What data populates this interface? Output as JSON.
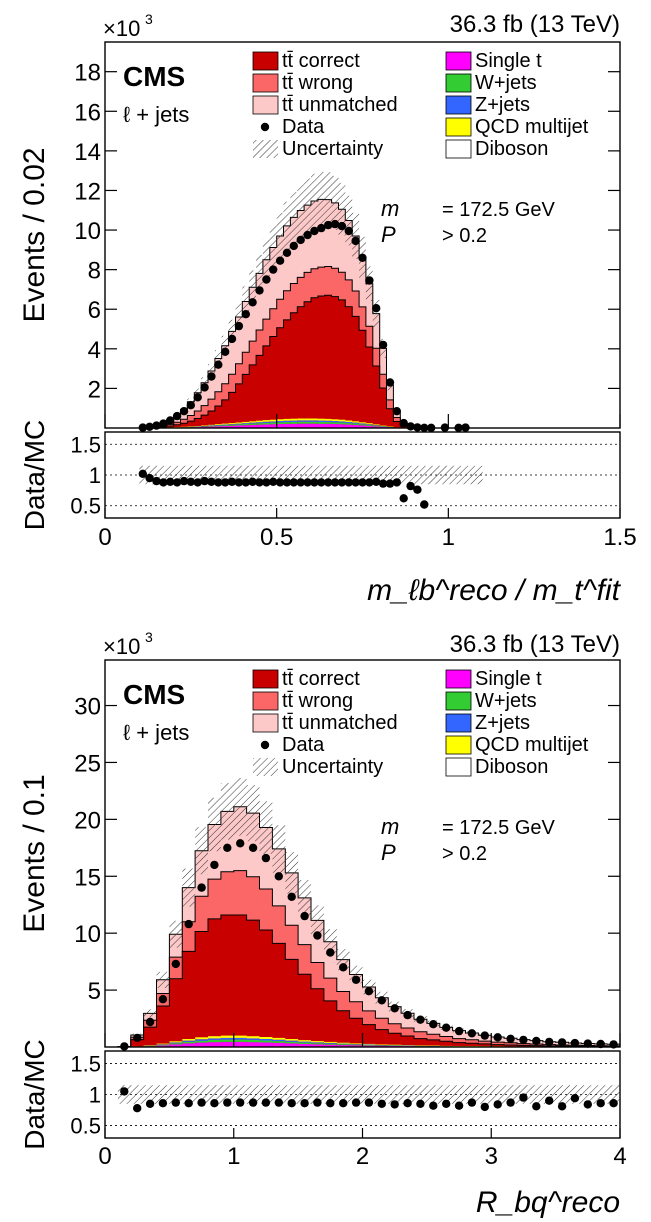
{
  "legend_items": [
    {
      "key": "tt_correct",
      "label": "tt̄ correct",
      "color": "#c80000"
    },
    {
      "key": "tt_wrong",
      "label": "tt̄ wrong",
      "color": "#fb6767"
    },
    {
      "key": "tt_unmatched",
      "label": "tt̄ unmatched",
      "color": "#fcc8c8"
    },
    {
      "key": "data",
      "label": "Data"
    },
    {
      "key": "uncertainty",
      "label": "Uncertainty"
    },
    {
      "key": "single_t",
      "label": "Single t",
      "color": "#ff00ff"
    },
    {
      "key": "w_jets",
      "label": "W+jets",
      "color": "#33cc33"
    },
    {
      "key": "z_jets",
      "label": "Z+jets",
      "color": "#3366ff"
    },
    {
      "key": "qcd",
      "label": "QCD multijet",
      "color": "#ffff00"
    },
    {
      "key": "diboson",
      "label": "Diboson",
      "color": "#ffffff"
    }
  ],
  "chart_data": [
    {
      "type": "bar",
      "lumi": "36.3 fb-1 (13 TeV)",
      "experiment": "CMS",
      "channel": "ℓ + jets",
      "annotation": {
        "m_gen": "172.5 GeV",
        "p_gof": "> 0.2"
      },
      "ylabel": "Events / 0.02",
      "ymultiplier": "×10^3",
      "ratio_label": "Data/MC",
      "xlabel": "m_ℓb^reco / m_t^fit",
      "xlim": [
        0,
        1.5
      ],
      "ylim": [
        0,
        19.5
      ],
      "xticks": [
        "0",
        "0.5",
        "1",
        "1.5"
      ],
      "yticks": [
        "2",
        "4",
        "6",
        "8",
        "10",
        "12",
        "14",
        "16",
        "18"
      ],
      "ratio_yticks": [
        "0.5",
        "1",
        "1.5"
      ],
      "ratio_ylim": [
        0.3,
        1.7
      ],
      "bin_edges_start": 0.1,
      "bin_width": 0.02,
      "series": [
        {
          "name": "tt correct",
          "values": [
            0,
            0.01,
            0.02,
            0.04,
            0.07,
            0.12,
            0.18,
            0.27,
            0.38,
            0.52,
            0.7,
            0.92,
            1.2,
            1.55,
            1.95,
            2.4,
            2.85,
            3.3,
            3.75,
            4.2,
            4.62,
            5.0,
            5.35,
            5.65,
            5.9,
            6.1,
            6.2,
            6.25,
            6.2,
            6.05,
            5.75,
            5.3,
            4.65,
            3.85,
            2.95,
            1.9,
            0.9,
            0.3,
            0.08,
            0.02,
            0.01,
            0.01,
            0,
            0,
            0,
            0,
            0,
            0,
            0,
            0
          ]
        },
        {
          "name": "tt wrong",
          "values": [
            0,
            0.02,
            0.03,
            0.05,
            0.08,
            0.13,
            0.2,
            0.28,
            0.38,
            0.48,
            0.6,
            0.72,
            0.82,
            0.92,
            1.02,
            1.12,
            1.2,
            1.28,
            1.35,
            1.4,
            1.44,
            1.47,
            1.48,
            1.48,
            1.48,
            1.47,
            1.46,
            1.45,
            1.43,
            1.4,
            1.35,
            1.28,
            1.18,
            1.05,
            0.9,
            0.7,
            0.45,
            0.2,
            0.06,
            0.02,
            0.01,
            0.01,
            0,
            0,
            0,
            0,
            0,
            0,
            0,
            0
          ]
        },
        {
          "name": "tt unmatched",
          "values": [
            0.01,
            0.04,
            0.08,
            0.14,
            0.22,
            0.35,
            0.5,
            0.7,
            0.92,
            1.16,
            1.42,
            1.68,
            1.92,
            2.16,
            2.36,
            2.56,
            2.72,
            2.86,
            3.0,
            3.1,
            3.2,
            3.28,
            3.34,
            3.38,
            3.4,
            3.42,
            3.42,
            3.38,
            3.3,
            3.18,
            3.0,
            2.78,
            2.5,
            2.15,
            1.75,
            1.3,
            0.75,
            0.3,
            0.1,
            0.04,
            0.02,
            0.01,
            0.01,
            0,
            0,
            0,
            0,
            0,
            0,
            0
          ]
        },
        {
          "name": "Others",
          "values": [
            0,
            0.01,
            0.01,
            0.02,
            0.03,
            0.04,
            0.06,
            0.08,
            0.1,
            0.13,
            0.16,
            0.19,
            0.22,
            0.25,
            0.28,
            0.31,
            0.34,
            0.37,
            0.4,
            0.42,
            0.44,
            0.46,
            0.47,
            0.48,
            0.48,
            0.48,
            0.47,
            0.46,
            0.44,
            0.42,
            0.38,
            0.34,
            0.29,
            0.24,
            0.18,
            0.12,
            0.07,
            0.03,
            0.01,
            0,
            0,
            0,
            0,
            0,
            0,
            0,
            0,
            0,
            0,
            0
          ]
        },
        {
          "name": "Data",
          "values": [
            0.02,
            0.06,
            0.12,
            0.22,
            0.38,
            0.6,
            0.85,
            1.15,
            1.55,
            2.05,
            2.6,
            3.2,
            3.85,
            4.5,
            5.15,
            5.75,
            6.35,
            6.95,
            7.5,
            8.0,
            8.45,
            8.85,
            9.2,
            9.5,
            9.75,
            9.95,
            10.1,
            10.25,
            10.3,
            10.2,
            9.95,
            9.45,
            8.6,
            7.45,
            6.05,
            4.2,
            2.3,
            0.85,
            0.25,
            0.08,
            0.03,
            0.01,
            0.01,
            0,
            0.02,
            0,
            0.01,
            0.02,
            0,
            0
          ]
        }
      ],
      "ratio": [
        1.02,
        0.95,
        0.9,
        0.88,
        0.89,
        0.88,
        0.9,
        0.89,
        0.88,
        0.9,
        0.89,
        0.88,
        0.88,
        0.89,
        0.88,
        0.88,
        0.89,
        0.88,
        0.88,
        0.89,
        0.88,
        0.88,
        0.88,
        0.88,
        0.88,
        0.88,
        0.88,
        0.88,
        0.88,
        0.88,
        0.88,
        0.88,
        0.88,
        0.88,
        0.89,
        0.86,
        0.86,
        0.88,
        0.62,
        0.82,
        0.76,
        0.52
      ]
    },
    {
      "type": "bar",
      "lumi": "36.3 fb-1 (13 TeV)",
      "experiment": "CMS",
      "channel": "ℓ + jets",
      "annotation": {
        "m_gen": "172.5 GeV",
        "p_gof": "> 0.2"
      },
      "ylabel": "Events / 0.1",
      "ymultiplier": "×10^3",
      "ratio_label": "Data/MC",
      "xlabel": "R_bq^reco",
      "xlim": [
        0,
        4
      ],
      "ylim": [
        0,
        34
      ],
      "xticks": [
        "0",
        "1",
        "2",
        "3",
        "4"
      ],
      "yticks": [
        "5",
        "10",
        "15",
        "20",
        "25",
        "30"
      ],
      "ratio_yticks": [
        "0.5",
        "1",
        "1.5"
      ],
      "ratio_ylim": [
        0.3,
        1.7
      ],
      "bin_edges_start": 0.1,
      "bin_width": 0.1,
      "series": [
        {
          "name": "tt correct",
          "values": [
            0.02,
            0.6,
            1.6,
            3.3,
            5.5,
            7.7,
            9.3,
            10.3,
            10.6,
            10.6,
            10.2,
            9.4,
            8.3,
            7.0,
            5.8,
            4.6,
            3.6,
            2.8,
            2.2,
            1.7,
            1.3,
            1.0,
            0.8,
            0.6,
            0.5,
            0.4,
            0.3,
            0.25,
            0.2,
            0.15,
            0.13,
            0.1,
            0.08,
            0.06,
            0.05,
            0.04,
            0.03,
            0.02,
            0.02
          ]
        },
        {
          "name": "tt wrong",
          "values": [
            0.01,
            0.2,
            0.6,
            1.1,
            1.9,
            2.6,
            3.1,
            3.5,
            3.8,
            3.9,
            3.8,
            3.6,
            3.3,
            3.0,
            2.6,
            2.3,
            2.0,
            1.7,
            1.45,
            1.2,
            1.0,
            0.85,
            0.7,
            0.6,
            0.5,
            0.42,
            0.35,
            0.3,
            0.25,
            0.22,
            0.19,
            0.16,
            0.14,
            0.12,
            0.1,
            0.09,
            0.08,
            0.07,
            0.06
          ]
        },
        {
          "name": "tt unmatched",
          "values": [
            0.01,
            0.2,
            0.6,
            1.2,
            2.0,
            3.0,
            4.0,
            4.8,
            5.3,
            5.6,
            5.6,
            5.4,
            5.0,
            4.6,
            4.1,
            3.7,
            3.2,
            2.8,
            2.4,
            2.1,
            1.8,
            1.5,
            1.3,
            1.1,
            0.95,
            0.8,
            0.7,
            0.6,
            0.52,
            0.45,
            0.4,
            0.35,
            0.3,
            0.26,
            0.23,
            0.2,
            0.18,
            0.16,
            0.14
          ]
        },
        {
          "name": "Others",
          "values": [
            0,
            0.05,
            0.15,
            0.3,
            0.5,
            0.7,
            0.85,
            0.95,
            1.0,
            1.0,
            0.95,
            0.88,
            0.8,
            0.7,
            0.6,
            0.52,
            0.45,
            0.38,
            0.32,
            0.27,
            0.23,
            0.2,
            0.17,
            0.14,
            0.12,
            0.1,
            0.09,
            0.08,
            0.07,
            0.06,
            0.05,
            0.04,
            0.04,
            0.03,
            0.03,
            0.02,
            0.02,
            0.02,
            0.02
          ]
        },
        {
          "name": "Data",
          "values": [
            0.05,
            0.8,
            2.2,
            4.2,
            7.3,
            10.8,
            14.0,
            16.0,
            17.5,
            17.9,
            17.5,
            16.6,
            15.0,
            13.2,
            11.5,
            9.8,
            8.3,
            7.0,
            5.9,
            4.9,
            4.1,
            3.4,
            2.8,
            2.4,
            2.0,
            1.7,
            1.4,
            1.2,
            1.0,
            0.85,
            0.72,
            0.62,
            0.53,
            0.45,
            0.4,
            0.34,
            0.3,
            0.26,
            0.23
          ]
        }
      ],
      "ratio": [
        1.05,
        0.78,
        0.85,
        0.86,
        0.87,
        0.86,
        0.87,
        0.86,
        0.87,
        0.87,
        0.87,
        0.87,
        0.87,
        0.86,
        0.86,
        0.87,
        0.86,
        0.86,
        0.87,
        0.87,
        0.85,
        0.84,
        0.86,
        0.85,
        0.82,
        0.85,
        0.82,
        0.87,
        0.8,
        0.84,
        0.87,
        0.95,
        0.81,
        0.9,
        0.81,
        0.94,
        0.84,
        0.86,
        0.86
      ]
    }
  ]
}
